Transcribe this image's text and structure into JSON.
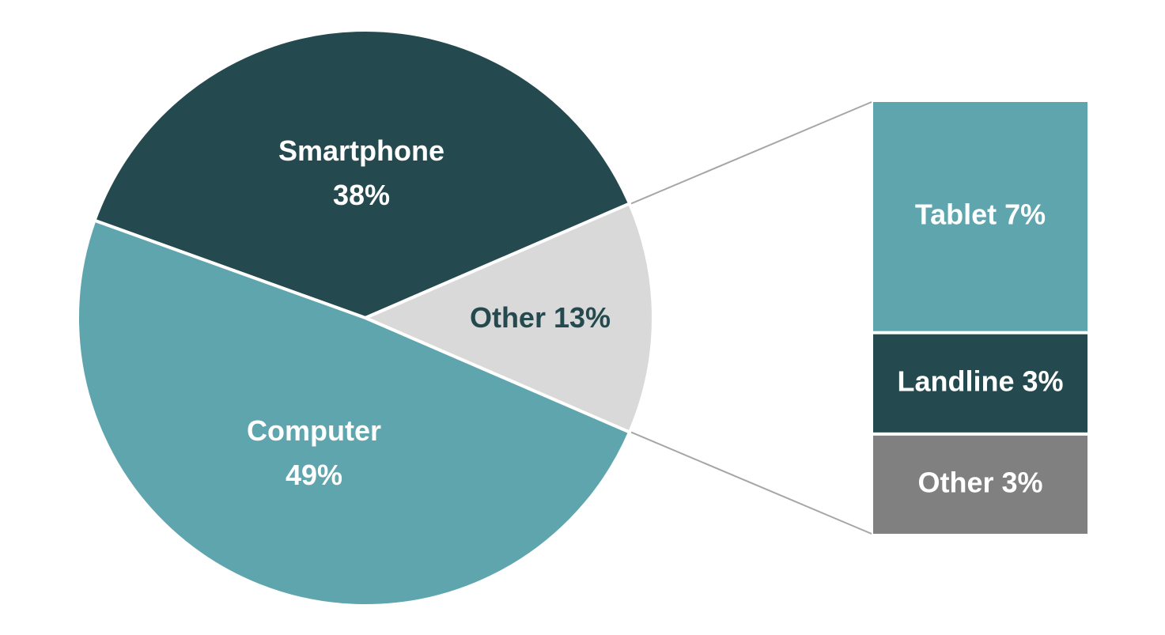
{
  "chart_data": {
    "type": "pie",
    "title": "",
    "pie": {
      "slices": [
        {
          "id": "smartphone",
          "label_lines": [
            "Smartphone",
            "38%"
          ],
          "value": 38,
          "color": "#244a50",
          "text_color": "#ffffff"
        },
        {
          "id": "other",
          "label_lines": [
            "Other 13%"
          ],
          "value": 13,
          "color": "#d9d9d9",
          "text_color": "#244a50"
        },
        {
          "id": "computer",
          "label_lines": [
            "Computer",
            "49%"
          ],
          "value": 49,
          "color": "#5fa5ad",
          "text_color": "#ffffff"
        }
      ]
    },
    "breakdown": {
      "of_slice": "other",
      "type": "stacked-bar",
      "segments": [
        {
          "id": "tablet",
          "label": "Tablet 7%",
          "value": 7,
          "color": "#5fa5ad",
          "text_color": "#ffffff"
        },
        {
          "id": "landline",
          "label": "Landline 3%",
          "value": 3,
          "color": "#244a50",
          "text_color": "#ffffff"
        },
        {
          "id": "other",
          "label": "Other 3%",
          "value": 3,
          "color": "#808080",
          "text_color": "#ffffff"
        }
      ]
    },
    "connector_color": "#a6a6a6"
  }
}
